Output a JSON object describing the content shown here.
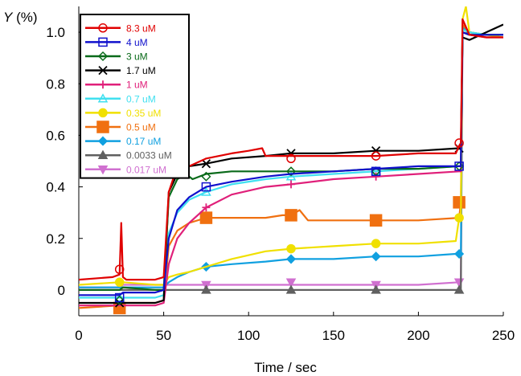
{
  "chart_data": {
    "type": "line",
    "title": "",
    "xlabel": "Time / sec",
    "ylabel": "Y (%)",
    "xlim": [
      0,
      250
    ],
    "ylim": [
      -0.1,
      1.1
    ],
    "x_ticks": [
      0,
      50,
      100,
      150,
      200,
      250
    ],
    "x_tick_labels": [
      "0",
      "50",
      "100",
      "150",
      "200",
      "250"
    ],
    "y_ticks": [
      0,
      0.2,
      0.4,
      0.6,
      0.8,
      1.0
    ],
    "y_tick_labels": [
      "0",
      "0.2",
      "0.4",
      "0.6",
      "0.8",
      "1.0"
    ],
    "grid": false,
    "legend_position": "top-left",
    "series": [
      {
        "name": "8.3 uM",
        "color": "#e00000",
        "marker": "circle-open",
        "x": [
          0,
          20,
          24,
          25,
          26,
          28,
          45,
          50,
          53,
          56,
          60,
          65,
          75,
          90,
          100,
          108,
          110,
          125,
          150,
          175,
          200,
          222,
          224,
          225,
          226,
          230,
          240,
          250
        ],
        "y": [
          0.04,
          0.05,
          0.06,
          0.26,
          0.05,
          0.04,
          0.04,
          0.05,
          0.38,
          0.44,
          0.47,
          0.48,
          0.51,
          0.53,
          0.54,
          0.55,
          0.52,
          0.52,
          0.52,
          0.52,
          0.53,
          0.53,
          0.56,
          0.57,
          1.05,
          0.99,
          0.98,
          0.98
        ],
        "markers_x": [
          24,
          125,
          175,
          224
        ],
        "markers_y": [
          0.08,
          0.51,
          0.52,
          0.57
        ]
      },
      {
        "name": "4 uM",
        "color": "#1010cc",
        "marker": "square-open",
        "x": [
          0,
          24,
          26,
          45,
          50,
          53,
          58,
          65,
          75,
          90,
          110,
          125,
          150,
          175,
          200,
          224,
          225,
          226,
          230,
          240,
          250
        ],
        "y": [
          -0.02,
          -0.02,
          -0.01,
          -0.01,
          0.0,
          0.2,
          0.31,
          0.36,
          0.4,
          0.42,
          0.44,
          0.45,
          0.46,
          0.47,
          0.48,
          0.48,
          0.48,
          1.0,
          0.99,
          0.99,
          0.99
        ],
        "markers_x": [
          24,
          75,
          175,
          224
        ],
        "markers_y": [
          -0.03,
          0.4,
          0.46,
          0.48
        ]
      },
      {
        "name": "3 uM",
        "color": "#0a6a1a",
        "marker": "diamond-open",
        "x": [
          0,
          24,
          26,
          45,
          50,
          53,
          58,
          63,
          67,
          75,
          90,
          110,
          125,
          150,
          175,
          200,
          224,
          225,
          226,
          230,
          240,
          250
        ],
        "y": [
          0.0,
          0.0,
          0.01,
          0.0,
          0.0,
          0.36,
          0.43,
          0.45,
          0.43,
          0.45,
          0.46,
          0.46,
          0.46,
          0.46,
          0.47,
          0.47,
          0.48,
          0.48,
          1.0,
          0.99,
          0.99,
          0.99
        ],
        "markers_x": [
          24,
          75,
          125,
          175,
          224
        ],
        "markers_y": [
          -0.04,
          0.44,
          0.46,
          0.46,
          0.48
        ]
      },
      {
        "name": "1.7 uM",
        "color": "#000000",
        "marker": "x",
        "x": [
          0,
          24,
          26,
          45,
          50,
          53,
          58,
          65,
          75,
          90,
          110,
          125,
          150,
          175,
          200,
          224,
          225,
          226,
          230,
          240,
          250
        ],
        "y": [
          -0.05,
          -0.05,
          -0.05,
          -0.05,
          -0.04,
          0.38,
          0.45,
          0.48,
          0.49,
          0.51,
          0.52,
          0.53,
          0.53,
          0.54,
          0.54,
          0.55,
          0.55,
          0.98,
          0.97,
          1.0,
          1.03
        ],
        "markers_x": [
          24,
          75,
          125,
          175,
          224
        ],
        "markers_y": [
          -0.05,
          0.49,
          0.53,
          0.54,
          0.55
        ]
      },
      {
        "name": "1 uM",
        "color": "#e0207a",
        "marker": "plus",
        "x": [
          0,
          24,
          26,
          45,
          50,
          53,
          58,
          65,
          75,
          90,
          110,
          125,
          150,
          175,
          200,
          224,
          225,
          226,
          230,
          240,
          250
        ],
        "y": [
          -0.06,
          -0.06,
          -0.06,
          -0.06,
          -0.05,
          0.1,
          0.2,
          0.26,
          0.32,
          0.37,
          0.4,
          0.41,
          0.43,
          0.44,
          0.45,
          0.46,
          0.46,
          1.0,
          0.99,
          0.98,
          0.98
        ],
        "markers_x": [
          75,
          125,
          175
        ],
        "markers_y": [
          0.32,
          0.41,
          0.44
        ]
      },
      {
        "name": "0.7 uM",
        "color": "#40e0f0",
        "marker": "triangle-open",
        "x": [
          0,
          24,
          26,
          45,
          50,
          53,
          58,
          65,
          75,
          90,
          110,
          125,
          150,
          175,
          200,
          224,
          225,
          226,
          230,
          240,
          250
        ],
        "y": [
          -0.03,
          -0.03,
          -0.03,
          -0.03,
          -0.02,
          0.22,
          0.3,
          0.35,
          0.38,
          0.41,
          0.43,
          0.44,
          0.45,
          0.46,
          0.47,
          0.48,
          0.48,
          1.01,
          1.0,
          0.99,
          0.99
        ],
        "markers_x": [
          24,
          75,
          125,
          175
        ],
        "markers_y": [
          -0.03,
          0.38,
          0.44,
          0.46
        ]
      },
      {
        "name": "0.35 uM",
        "color": "#f0e000",
        "marker": "circle-filled",
        "x": [
          0,
          24,
          26,
          45,
          50,
          53,
          58,
          65,
          75,
          90,
          110,
          125,
          150,
          175,
          200,
          222,
          224,
          225,
          226,
          228,
          230,
          240,
          250
        ],
        "y": [
          0.02,
          0.03,
          0.03,
          0.02,
          0.02,
          0.05,
          0.06,
          0.07,
          0.09,
          0.12,
          0.15,
          0.16,
          0.17,
          0.18,
          0.18,
          0.19,
          0.28,
          0.28,
          1.05,
          1.1,
          1.0,
          0.99,
          0.98
        ],
        "markers_x": [
          24,
          125,
          175,
          224
        ],
        "markers_y": [
          0.03,
          0.16,
          0.18,
          0.28
        ]
      },
      {
        "name": "0.5 uM",
        "color": "#f07010",
        "marker": "square-filled",
        "x": [
          0,
          24,
          26,
          45,
          50,
          53,
          58,
          65,
          75,
          90,
          110,
          120,
          125,
          130,
          135,
          150,
          175,
          200,
          224,
          225,
          226,
          230,
          240,
          250
        ],
        "y": [
          -0.07,
          -0.06,
          -0.05,
          -0.05,
          -0.04,
          0.17,
          0.23,
          0.26,
          0.28,
          0.28,
          0.28,
          0.29,
          0.29,
          0.31,
          0.27,
          0.27,
          0.27,
          0.27,
          0.28,
          0.34,
          1.03,
          1.0,
          0.99,
          0.99
        ],
        "markers_x": [
          24,
          75,
          125,
          175,
          224
        ],
        "markers_y": [
          -0.07,
          0.28,
          0.29,
          0.27,
          0.34
        ]
      },
      {
        "name": "0.17 uM",
        "color": "#10a0e0",
        "marker": "diamond-filled",
        "x": [
          0,
          24,
          26,
          45,
          50,
          53,
          58,
          65,
          75,
          90,
          110,
          125,
          150,
          175,
          200,
          222,
          224,
          225,
          226,
          230,
          240,
          250
        ],
        "y": [
          0.01,
          0.01,
          0.01,
          0.01,
          0.01,
          0.03,
          0.05,
          0.07,
          0.09,
          0.1,
          0.11,
          0.12,
          0.12,
          0.13,
          0.13,
          0.14,
          0.14,
          0.14,
          1.02,
          1.0,
          0.99,
          0.99
        ],
        "markers_x": [
          75,
          125,
          175,
          224
        ],
        "markers_y": [
          0.09,
          0.12,
          0.13,
          0.14
        ]
      },
      {
        "name": "0.0033 uM",
        "color": "#606060",
        "marker": "triangle-filled",
        "x": [
          0,
          24,
          26,
          45,
          50,
          75,
          100,
          125,
          150,
          175,
          200,
          224,
          225,
          226,
          230,
          240,
          250
        ],
        "y": [
          0.0,
          0.0,
          0.0,
          0.0,
          0.0,
          0.0,
          0.0,
          0.0,
          0.0,
          0.0,
          0.0,
          0.0,
          0.0,
          1.02,
          0.99,
          0.99,
          0.99
        ],
        "markers_x": [
          75,
          125,
          175,
          224
        ],
        "markers_y": [
          0.0,
          0.0,
          0.0,
          0.0
        ]
      },
      {
        "name": "0.017 uM",
        "color": "#d070d0",
        "marker": "triangle-down-filled",
        "x": [
          0,
          24,
          26,
          45,
          50,
          75,
          100,
          125,
          150,
          175,
          200,
          224,
          225,
          226,
          230,
          240,
          250
        ],
        "y": [
          0.01,
          0.01,
          0.02,
          0.02,
          0.02,
          0.02,
          0.02,
          0.02,
          0.02,
          0.02,
          0.02,
          0.03,
          0.03,
          1.02,
          0.99,
          0.99,
          0.99
        ],
        "markers_x": [
          75,
          125,
          175,
          224
        ],
        "markers_y": [
          0.02,
          0.03,
          0.02,
          0.03
        ]
      }
    ]
  }
}
